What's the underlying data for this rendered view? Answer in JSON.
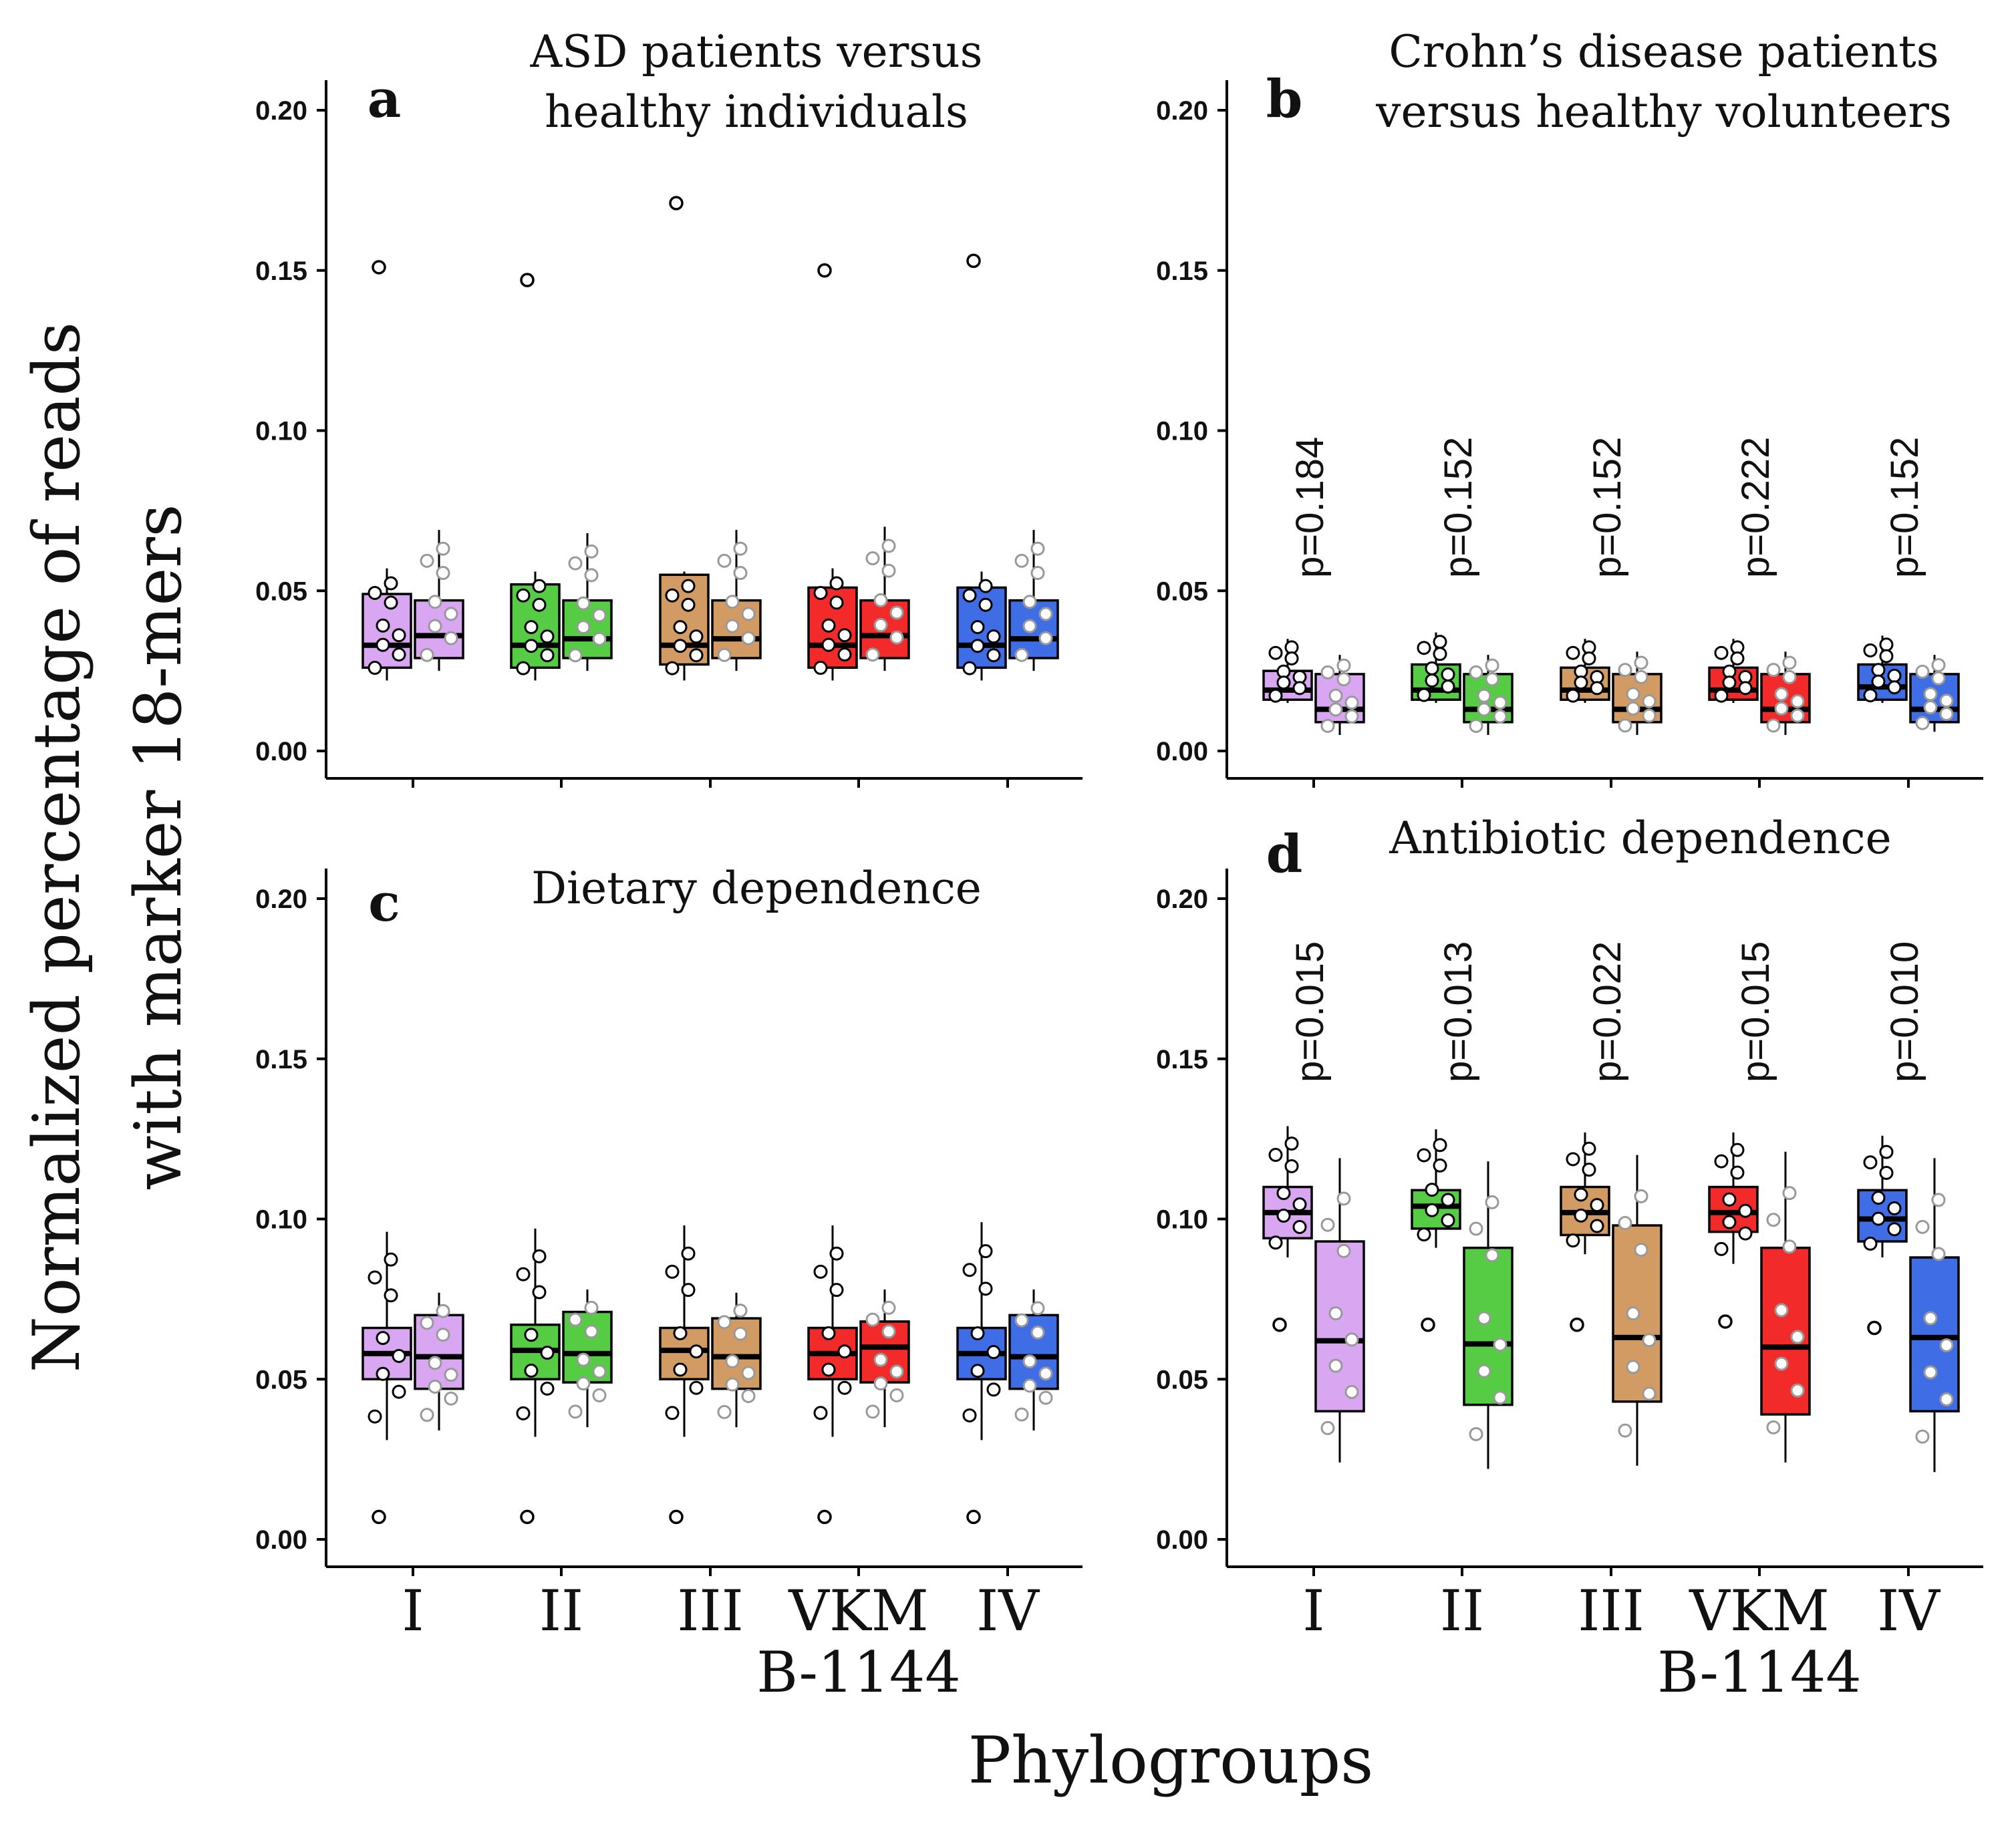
{
  "figure": {
    "y_axis_label_line1": "Normalized percentage of reads",
    "y_axis_label_line2": "with marker 18-mers",
    "x_axis_label": "Phylogroups",
    "x_ticks": [
      "I",
      "II",
      "III",
      "VKM",
      "IV"
    ],
    "x_tick_sub": "B-1144",
    "y_ticks": [
      "0.00",
      "0.05",
      "0.10",
      "0.15",
      "0.20"
    ],
    "colors": {
      "I": "#D9A6F2",
      "II": "#55CC44",
      "III": "#D29B64",
      "VKM B-1144": "#F22A2A",
      "IV": "#3F6DE6"
    }
  },
  "chart_data": [
    {
      "type": "box",
      "panel": "a",
      "title_line1": "ASD patients versus",
      "title_line2": "healthy individuals",
      "categories": [
        "I",
        "II",
        "III",
        "VKM B-1144",
        "IV"
      ],
      "ylim": [
        0,
        0.2
      ],
      "pvalues": [],
      "boxes": [
        {
          "group": "I",
          "q1": 0.026,
          "median": 0.033,
          "q3": 0.049,
          "wlo": 0.022,
          "whi": 0.057,
          "outliers": [
            0.151
          ]
        },
        {
          "group": "I",
          "q1": 0.029,
          "median": 0.036,
          "q3": 0.047,
          "wlo": 0.025,
          "whi": 0.069,
          "outliers": []
        },
        {
          "group": "II",
          "q1": 0.026,
          "median": 0.033,
          "q3": 0.052,
          "wlo": 0.022,
          "whi": 0.056,
          "outliers": [
            0.147
          ]
        },
        {
          "group": "II",
          "q1": 0.029,
          "median": 0.035,
          "q3": 0.047,
          "wlo": 0.025,
          "whi": 0.068,
          "outliers": []
        },
        {
          "group": "III",
          "q1": 0.027,
          "median": 0.033,
          "q3": 0.055,
          "wlo": 0.022,
          "whi": 0.056,
          "outliers": [
            0.171
          ]
        },
        {
          "group": "III",
          "q1": 0.029,
          "median": 0.035,
          "q3": 0.047,
          "wlo": 0.025,
          "whi": 0.069,
          "outliers": []
        },
        {
          "group": "VKM B-1144",
          "q1": 0.026,
          "median": 0.033,
          "q3": 0.051,
          "wlo": 0.022,
          "whi": 0.057,
          "outliers": [
            0.15
          ]
        },
        {
          "group": "VKM B-1144",
          "q1": 0.029,
          "median": 0.036,
          "q3": 0.047,
          "wlo": 0.025,
          "whi": 0.07,
          "outliers": []
        },
        {
          "group": "IV",
          "q1": 0.026,
          "median": 0.033,
          "q3": 0.051,
          "wlo": 0.022,
          "whi": 0.056,
          "outliers": [
            0.153
          ]
        },
        {
          "group": "IV",
          "q1": 0.029,
          "median": 0.035,
          "q3": 0.047,
          "wlo": 0.025,
          "whi": 0.069,
          "outliers": []
        }
      ]
    },
    {
      "type": "box",
      "panel": "b",
      "title_line1": "Crohn’s disease patients",
      "title_line2": "versus healthy volunteers",
      "categories": [
        "I",
        "II",
        "III",
        "VKM B-1144",
        "IV"
      ],
      "ylim": [
        0,
        0.2
      ],
      "pvalues": [
        "p=0.184",
        "p=0.152",
        "p=0.152",
        "p=0.222",
        "p=0.152"
      ],
      "boxes": [
        {
          "group": "I",
          "q1": 0.016,
          "median": 0.019,
          "q3": 0.025,
          "wlo": 0.015,
          "whi": 0.035,
          "outliers": []
        },
        {
          "group": "I",
          "q1": 0.009,
          "median": 0.013,
          "q3": 0.024,
          "wlo": 0.005,
          "whi": 0.03,
          "outliers": []
        },
        {
          "group": "II",
          "q1": 0.016,
          "median": 0.019,
          "q3": 0.027,
          "wlo": 0.015,
          "whi": 0.037,
          "outliers": []
        },
        {
          "group": "II",
          "q1": 0.009,
          "median": 0.013,
          "q3": 0.024,
          "wlo": 0.005,
          "whi": 0.03,
          "outliers": []
        },
        {
          "group": "III",
          "q1": 0.016,
          "median": 0.019,
          "q3": 0.026,
          "wlo": 0.015,
          "whi": 0.035,
          "outliers": []
        },
        {
          "group": "III",
          "q1": 0.009,
          "median": 0.013,
          "q3": 0.024,
          "wlo": 0.005,
          "whi": 0.031,
          "outliers": []
        },
        {
          "group": "VKM B-1144",
          "q1": 0.016,
          "median": 0.019,
          "q3": 0.026,
          "wlo": 0.015,
          "whi": 0.035,
          "outliers": []
        },
        {
          "group": "VKM B-1144",
          "q1": 0.009,
          "median": 0.013,
          "q3": 0.024,
          "wlo": 0.005,
          "whi": 0.031,
          "outliers": []
        },
        {
          "group": "IV",
          "q1": 0.016,
          "median": 0.02,
          "q3": 0.027,
          "wlo": 0.015,
          "whi": 0.036,
          "outliers": []
        },
        {
          "group": "IV",
          "q1": 0.009,
          "median": 0.013,
          "q3": 0.024,
          "wlo": 0.006,
          "whi": 0.03,
          "outliers": []
        }
      ]
    },
    {
      "type": "box",
      "panel": "c",
      "title_line1": "Dietary dependence",
      "title_line2": "",
      "categories": [
        "I",
        "II",
        "III",
        "VKM B-1144",
        "IV"
      ],
      "ylim": [
        0,
        0.2
      ],
      "pvalues": [],
      "boxes": [
        {
          "group": "I",
          "q1": 0.05,
          "median": 0.058,
          "q3": 0.066,
          "wlo": 0.031,
          "whi": 0.096,
          "outliers": [
            0.007
          ]
        },
        {
          "group": "I",
          "q1": 0.047,
          "median": 0.057,
          "q3": 0.07,
          "wlo": 0.034,
          "whi": 0.077,
          "outliers": []
        },
        {
          "group": "II",
          "q1": 0.05,
          "median": 0.059,
          "q3": 0.067,
          "wlo": 0.032,
          "whi": 0.097,
          "outliers": [
            0.007
          ]
        },
        {
          "group": "II",
          "q1": 0.049,
          "median": 0.058,
          "q3": 0.071,
          "wlo": 0.035,
          "whi": 0.078,
          "outliers": []
        },
        {
          "group": "III",
          "q1": 0.05,
          "median": 0.059,
          "q3": 0.066,
          "wlo": 0.032,
          "whi": 0.098,
          "outliers": [
            0.007
          ]
        },
        {
          "group": "III",
          "q1": 0.047,
          "median": 0.057,
          "q3": 0.069,
          "wlo": 0.035,
          "whi": 0.077,
          "outliers": []
        },
        {
          "group": "VKM B-1144",
          "q1": 0.05,
          "median": 0.058,
          "q3": 0.066,
          "wlo": 0.032,
          "whi": 0.098,
          "outliers": [
            0.007
          ]
        },
        {
          "group": "VKM B-1144",
          "q1": 0.049,
          "median": 0.06,
          "q3": 0.068,
          "wlo": 0.035,
          "whi": 0.078,
          "outliers": []
        },
        {
          "group": "IV",
          "q1": 0.05,
          "median": 0.058,
          "q3": 0.066,
          "wlo": 0.031,
          "whi": 0.099,
          "outliers": [
            0.007
          ]
        },
        {
          "group": "IV",
          "q1": 0.047,
          "median": 0.057,
          "q3": 0.07,
          "wlo": 0.034,
          "whi": 0.078,
          "outliers": []
        }
      ]
    },
    {
      "type": "box",
      "panel": "d",
      "title_line1": "Antibiotic dependence",
      "title_line2": "",
      "categories": [
        "I",
        "II",
        "III",
        "VKM B-1144",
        "IV"
      ],
      "ylim": [
        0,
        0.2
      ],
      "pvalues": [
        "p=0.015",
        "p=0.013",
        "p=0.022",
        "p=0.015",
        "p=0.010"
      ],
      "boxes": [
        {
          "group": "I",
          "q1": 0.094,
          "median": 0.102,
          "q3": 0.11,
          "wlo": 0.088,
          "whi": 0.129,
          "outliers": [
            0.067
          ]
        },
        {
          "group": "I",
          "q1": 0.04,
          "median": 0.062,
          "q3": 0.093,
          "wlo": 0.024,
          "whi": 0.119,
          "outliers": []
        },
        {
          "group": "II",
          "q1": 0.097,
          "median": 0.104,
          "q3": 0.109,
          "wlo": 0.091,
          "whi": 0.128,
          "outliers": [
            0.067
          ]
        },
        {
          "group": "II",
          "q1": 0.042,
          "median": 0.061,
          "q3": 0.091,
          "wlo": 0.022,
          "whi": 0.118,
          "outliers": []
        },
        {
          "group": "III",
          "q1": 0.095,
          "median": 0.102,
          "q3": 0.11,
          "wlo": 0.089,
          "whi": 0.127,
          "outliers": [
            0.067
          ]
        },
        {
          "group": "III",
          "q1": 0.043,
          "median": 0.063,
          "q3": 0.098,
          "wlo": 0.023,
          "whi": 0.12,
          "outliers": []
        },
        {
          "group": "VKM B-1144",
          "q1": 0.096,
          "median": 0.102,
          "q3": 0.11,
          "wlo": 0.086,
          "whi": 0.127,
          "outliers": [
            0.068
          ]
        },
        {
          "group": "VKM B-1144",
          "q1": 0.039,
          "median": 0.06,
          "q3": 0.091,
          "wlo": 0.024,
          "whi": 0.121,
          "outliers": []
        },
        {
          "group": "IV",
          "q1": 0.093,
          "median": 0.1,
          "q3": 0.109,
          "wlo": 0.088,
          "whi": 0.126,
          "outliers": [
            0.066
          ]
        },
        {
          "group": "IV",
          "q1": 0.04,
          "median": 0.063,
          "q3": 0.088,
          "wlo": 0.021,
          "whi": 0.119,
          "outliers": []
        }
      ]
    }
  ]
}
